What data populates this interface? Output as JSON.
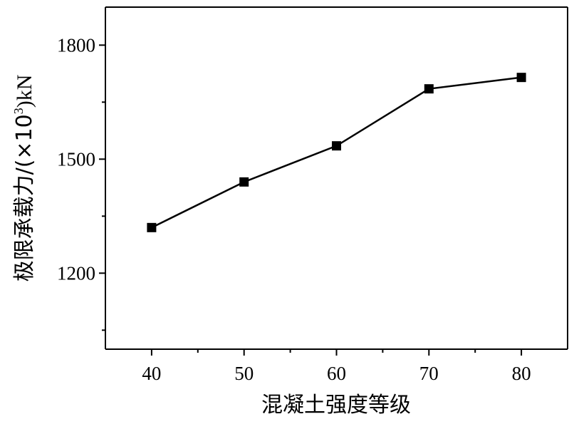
{
  "chart_data": {
    "type": "line",
    "title": "",
    "xlabel": "混凝土强度等级",
    "ylabel": "极限承载力/(×10",
    "ylabel_sup": "3",
    "ylabel_suffix": ")kN",
    "x": [
      40,
      50,
      60,
      70,
      80
    ],
    "xlim": [
      35,
      85
    ],
    "ylim": [
      1000,
      1900
    ],
    "xticks": [
      40,
      50,
      60,
      70,
      80
    ],
    "xtick_labels": [
      "40",
      "50",
      "60",
      "70",
      "80"
    ],
    "yticks": [
      1200,
      1500,
      1800
    ],
    "ytick_labels": [
      "1200",
      "1500",
      "1800"
    ],
    "series": [
      {
        "values": [
          1320,
          1440,
          1535,
          1685,
          1715
        ],
        "marker": "square",
        "color": "#000000"
      }
    ],
    "grid": false,
    "legend": "none"
  }
}
